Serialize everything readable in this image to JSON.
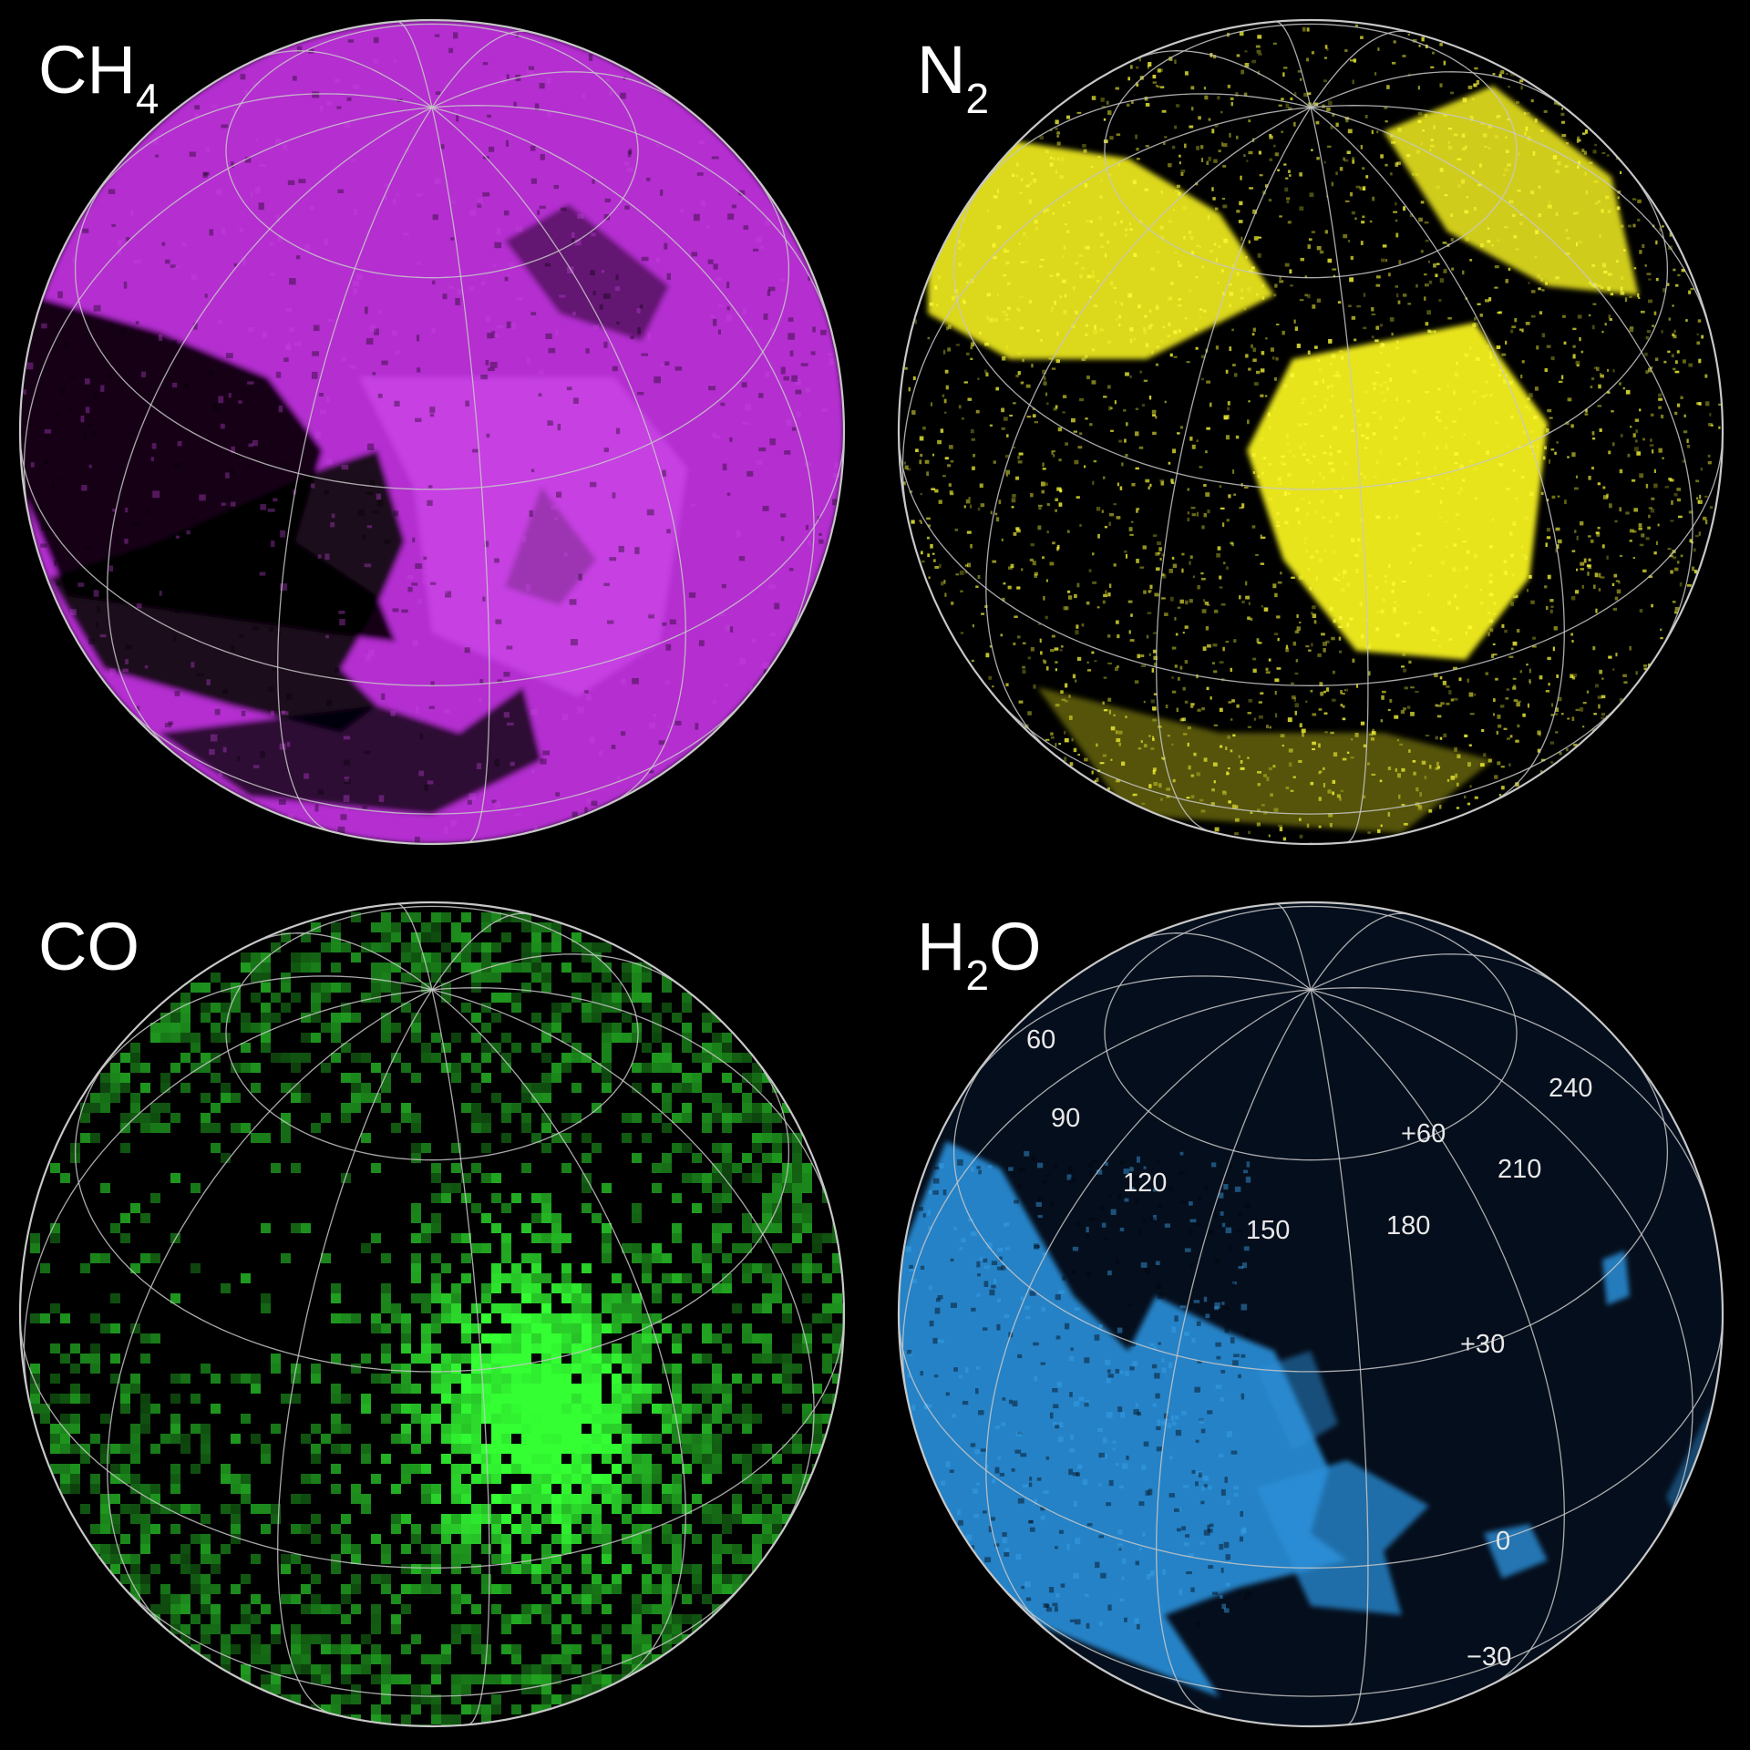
{
  "panels": [
    {
      "id": "ch4",
      "label_main": "CH",
      "label_sub": "4",
      "label_after": "",
      "color": "#b42fd0",
      "bright": "#d64ff0"
    },
    {
      "id": "n2",
      "label_main": "N",
      "label_sub": "2",
      "label_after": "",
      "color": "#f4f020",
      "bright": "#ffff3a"
    },
    {
      "id": "co",
      "label_main": "CO",
      "label_sub": "",
      "label_after": "",
      "color": "#1f9a25",
      "bright": "#33ff33"
    },
    {
      "id": "h2o",
      "label_main": "H",
      "label_sub": "2",
      "label_after": "O",
      "color": "#2a8fd8",
      "bright": "#3aa4ec"
    }
  ],
  "grid_labels": {
    "longitudes": [
      "60",
      "90",
      "120",
      "150",
      "180",
      "210",
      "240"
    ],
    "latitudes": [
      "+60",
      "+30",
      "0",
      "−30"
    ]
  },
  "colors": {
    "background": "#000000",
    "grid": "#c8c8c8",
    "h2o_disk": "#050e1c"
  }
}
